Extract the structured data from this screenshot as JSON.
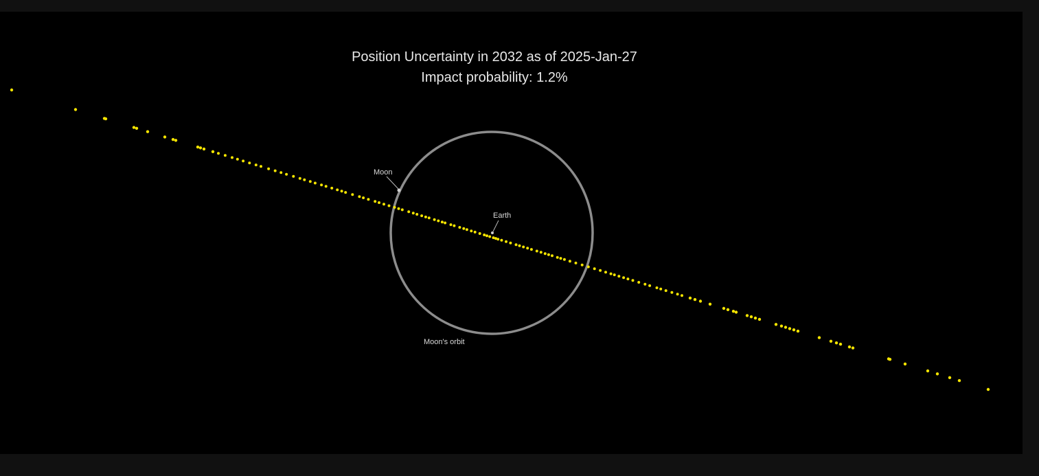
{
  "title": {
    "line1": "Position Uncertainty in 2032 as of 2025-Jan-27",
    "line2": "Impact probability: 1.2%"
  },
  "labels": {
    "moon": "Moon",
    "earth": "Earth",
    "moon_orbit": "Moon's orbit"
  },
  "colors": {
    "background": "#000000",
    "frame": "#111111",
    "uncertainty_points": "#f5e400",
    "orbit": "#8c8c8c",
    "text": "#e8e8e8"
  }
}
